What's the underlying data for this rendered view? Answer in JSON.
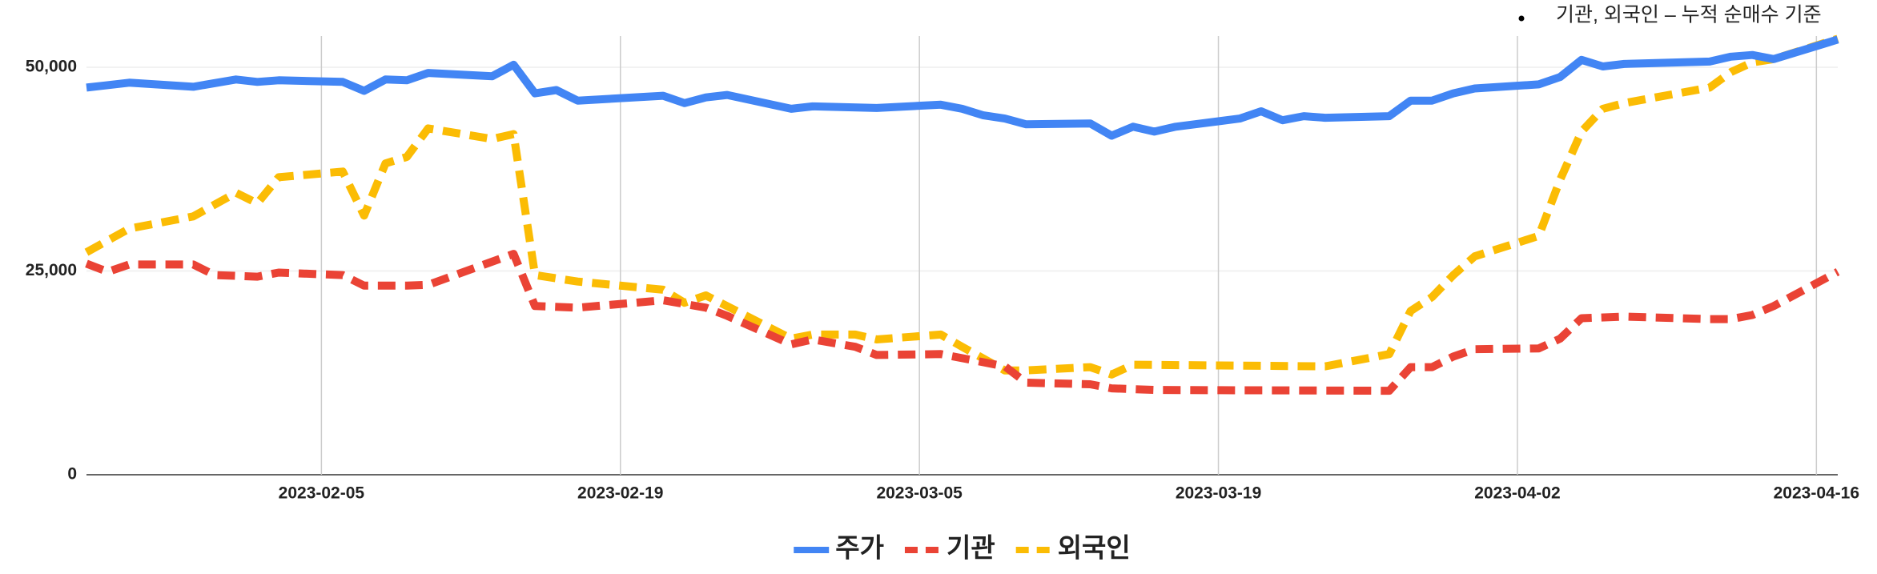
{
  "chart_data": {
    "type": "line",
    "annotation": "기관, 외국인 – 누적 순매수 기준",
    "xlim": [
      "2023-01-25",
      "2023-04-17"
    ],
    "xticks": [
      "2023-02-05",
      "2023-02-19",
      "2023-03-05",
      "2023-03-19",
      "2023-04-02",
      "2023-04-16"
    ],
    "ylim": [
      0,
      53500
    ],
    "yticks": [
      0,
      {
        "value": 25000,
        "label": "25,000"
      },
      {
        "value": 50000,
        "label": "50,000"
      }
    ],
    "grid": true,
    "legend": "bottom",
    "series": [
      {
        "name": "주가",
        "color": "#4285f4",
        "dash": false,
        "x": [
          "2023-01-25",
          "2023-01-27",
          "2023-01-30",
          "2023-02-01",
          "2023-02-02",
          "2023-02-03",
          "2023-02-06",
          "2023-02-07",
          "2023-02-08",
          "2023-02-09",
          "2023-02-10",
          "2023-02-13",
          "2023-02-14",
          "2023-02-15",
          "2023-02-16",
          "2023-02-17",
          "2023-02-21",
          "2023-02-22",
          "2023-02-23",
          "2023-02-24",
          "2023-02-27",
          "2023-02-28",
          "2023-03-03",
          "2023-03-06",
          "2023-03-07",
          "2023-03-08",
          "2023-03-09",
          "2023-03-10",
          "2023-03-13",
          "2023-03-14",
          "2023-03-15",
          "2023-03-16",
          "2023-03-17",
          "2023-03-20",
          "2023-03-21",
          "2023-03-22",
          "2023-03-23",
          "2023-03-24",
          "2023-03-27",
          "2023-03-28",
          "2023-03-29",
          "2023-03-30",
          "2023-03-31",
          "2023-04-03",
          "2023-04-04",
          "2023-04-05",
          "2023-04-06",
          "2023-04-07",
          "2023-04-11",
          "2023-04-12",
          "2023-04-13",
          "2023-04-14",
          "2023-04-17"
        ],
        "values": [
          47500,
          48100,
          47600,
          48500,
          48200,
          48400,
          48200,
          47100,
          48500,
          48400,
          49300,
          48900,
          50300,
          46800,
          47200,
          45900,
          46500,
          45600,
          46300,
          46600,
          44900,
          45200,
          45000,
          45400,
          44900,
          44100,
          43700,
          43000,
          43100,
          41600,
          42700,
          42100,
          42700,
          43700,
          44600,
          43500,
          44000,
          43800,
          44000,
          45900,
          45900,
          46800,
          47400,
          47900,
          48800,
          50900,
          50100,
          50400,
          50700,
          51300,
          51500,
          51000,
          53400
        ]
      },
      {
        "name": "기관",
        "color": "#ea4335",
        "dash": true,
        "x": [
          "2023-01-25",
          "2023-01-26",
          "2023-01-27",
          "2023-01-30",
          "2023-01-31",
          "2023-02-02",
          "2023-02-03",
          "2023-02-06",
          "2023-02-07",
          "2023-02-09",
          "2023-02-10",
          "2023-02-14",
          "2023-02-15",
          "2023-02-17",
          "2023-02-21",
          "2023-02-23",
          "2023-02-24",
          "2023-02-27",
          "2023-02-28",
          "2023-03-02",
          "2023-03-03",
          "2023-03-06",
          "2023-03-09",
          "2023-03-10",
          "2023-03-13",
          "2023-03-14",
          "2023-03-16",
          "2023-03-27",
          "2023-03-28",
          "2023-03-29",
          "2023-03-30",
          "2023-03-31",
          "2023-04-03",
          "2023-04-04",
          "2023-04-05",
          "2023-04-07",
          "2023-04-11",
          "2023-04-12",
          "2023-04-13",
          "2023-04-14",
          "2023-04-17"
        ],
        "values": [
          25900,
          24900,
          25800,
          25800,
          24500,
          24300,
          24800,
          24500,
          23200,
          23200,
          23300,
          27100,
          20700,
          20500,
          21400,
          20500,
          19500,
          16000,
          16600,
          15700,
          14700,
          14800,
          13300,
          11300,
          11100,
          10600,
          10400,
          10300,
          13200,
          13200,
          14500,
          15400,
          15500,
          16700,
          19200,
          19400,
          19100,
          19100,
          19600,
          20700,
          24900
        ]
      },
      {
        "name": "외국인",
        "color": "#fbbc04",
        "dash": true,
        "x": [
          "2023-01-25",
          "2023-01-27",
          "2023-01-30",
          "2023-02-01",
          "2023-02-02",
          "2023-02-03",
          "2023-02-06",
          "2023-02-07",
          "2023-02-08",
          "2023-02-09",
          "2023-02-10",
          "2023-02-13",
          "2023-02-14",
          "2023-02-15",
          "2023-02-17",
          "2023-02-21",
          "2023-02-22",
          "2023-02-23",
          "2023-02-27",
          "2023-02-28",
          "2023-03-02",
          "2023-03-03",
          "2023-03-06",
          "2023-03-07",
          "2023-03-09",
          "2023-03-10",
          "2023-03-13",
          "2023-03-14",
          "2023-03-15",
          "2023-03-24",
          "2023-03-27",
          "2023-03-28",
          "2023-03-29",
          "2023-03-30",
          "2023-03-31",
          "2023-04-03",
          "2023-04-04",
          "2023-04-05",
          "2023-04-06",
          "2023-04-07",
          "2023-04-11",
          "2023-04-12",
          "2023-04-13",
          "2023-04-14",
          "2023-04-17"
        ],
        "values": [
          27300,
          30200,
          31700,
          34600,
          33300,
          36500,
          37200,
          31800,
          38200,
          39000,
          42500,
          41200,
          41800,
          24500,
          23700,
          22700,
          21100,
          22000,
          16700,
          17200,
          17200,
          16600,
          17200,
          15700,
          12800,
          12800,
          13200,
          12300,
          13500,
          13300,
          14800,
          20100,
          21800,
          24500,
          26800,
          29300,
          36200,
          42100,
          44900,
          45600,
          47500,
          49400,
          50600,
          51000,
          53500
        ]
      }
    ]
  }
}
